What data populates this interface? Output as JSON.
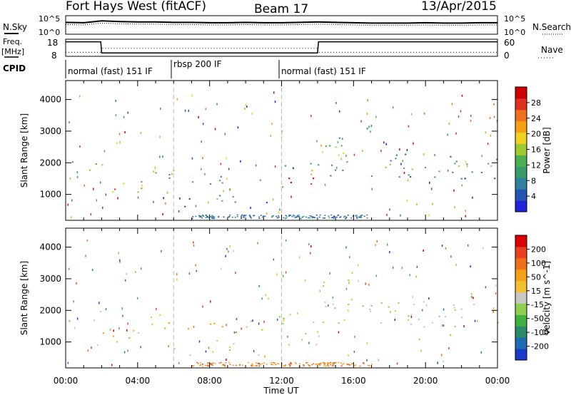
{
  "header": {
    "station": "Fort Hays West (fitACF)",
    "beam": "Beam 17",
    "date": "13/Apr/2015"
  },
  "top_panels": {
    "nsky_label": "N.Sky",
    "nsearch_label": "N.Search",
    "noise_ticks": [
      "10^5",
      "10^0"
    ],
    "noise_ticks_right": [
      "10^5",
      "10^0"
    ],
    "freq_label_1": "Freq.",
    "freq_label_2": "[MHz]",
    "freq_ticks": [
      "18",
      "8"
    ],
    "nave_label": "Nave",
    "nave_ticks": [
      "60",
      "0"
    ],
    "cpid_label": "CPID"
  },
  "cpid_segments": [
    {
      "label": "normal (fast) 151 IF",
      "start": 0,
      "end": 6
    },
    {
      "label": "rbsp 200 IF",
      "start": 6,
      "end": 12
    },
    {
      "label": "normal (fast) 151 IF",
      "start": 12,
      "end": 24
    }
  ],
  "power_colorbar": {
    "title": "Power [dB]",
    "ticks": [
      "28",
      "24",
      "20",
      "16",
      "12",
      "8",
      "4"
    ],
    "colors": [
      "#2222dd",
      "#2255b0",
      "#2f7fa0",
      "#3a9a6a",
      "#4cb050",
      "#a0c830",
      "#f0d020",
      "#f5a010",
      "#f07020",
      "#e03020",
      "#d00000"
    ]
  },
  "velocity_colorbar": {
    "title": "Velocity [m s^-1]",
    "ticks": [
      "200",
      "100",
      "50",
      "15",
      "-15",
      "-50",
      "-100",
      "-200"
    ],
    "colors": [
      "#1a3acc",
      "#1f6ab0",
      "#2a8a6a",
      "#40b040",
      "#90d050",
      "#c8c8c0",
      "#f0c030",
      "#f5a015",
      "#f07018",
      "#e84020",
      "#dd0000"
    ]
  },
  "chart_data": [
    {
      "type": "line",
      "panel": "noise",
      "x": [
        0,
        1,
        2,
        3,
        4,
        5,
        6,
        7,
        8,
        9,
        10,
        11,
        12,
        13,
        14,
        15,
        16,
        17,
        18,
        19,
        20,
        21,
        22,
        23,
        24
      ],
      "series": [
        {
          "name": "N.Sky",
          "values": [
            3.2,
            3.1,
            3.6,
            3.4,
            3.3,
            3.3,
            3.2,
            3.2,
            3.1,
            3.1,
            3.2,
            3.1,
            3.1,
            3.2,
            3.3,
            3.2,
            3.1,
            3.0,
            3.0,
            3.0,
            3.1,
            3.0,
            3.0,
            3.1,
            3.1
          ]
        }
      ],
      "ylim": [
        0,
        5
      ],
      "yscale": "log"
    },
    {
      "type": "line",
      "panel": "frequency",
      "x": [
        0,
        1.95,
        2.0,
        14.0,
        14.05,
        24
      ],
      "series": [
        {
          "name": "Freq.",
          "values": [
            16.5,
            16.5,
            10.0,
            10.0,
            16.5,
            16.5
          ]
        },
        {
          "name": "Nave",
          "values": [
            14,
            14,
            28,
            28,
            14,
            14
          ]
        }
      ],
      "ylim": [
        8,
        18
      ]
    },
    {
      "type": "heatmap",
      "panel": "power",
      "xlabel": "Time UT",
      "ylabel": "Slant Range [km]",
      "xlim": [
        0,
        24
      ],
      "ylim": [
        180,
        4600
      ],
      "xticks": [
        "00:00",
        "04:00",
        "08:00",
        "12:00",
        "16:00",
        "20:00",
        "00:00"
      ],
      "yticks": [
        1000,
        2000,
        3000,
        4000
      ],
      "scatter_regions": [
        {
          "t0": 0.0,
          "t1": 2.0,
          "r0": 1650,
          "r1": 2100,
          "level": 0.55
        },
        {
          "t0": 2.0,
          "t1": 4.5,
          "r0": 1000,
          "r1": 1500,
          "level": 0.8
        },
        {
          "t0": 4.5,
          "t1": 6.0,
          "r0": 1400,
          "r1": 2200,
          "level": 0.4
        },
        {
          "t0": 6.0,
          "t1": 7.0,
          "r0": 600,
          "r1": 1000,
          "level": 0.25
        },
        {
          "t0": 7.0,
          "t1": 11.0,
          "r0": 1300,
          "r1": 1700,
          "level": 0.45
        },
        {
          "t0": 7.0,
          "t1": 9.5,
          "r0": 700,
          "r1": 1100,
          "level": 0.5
        },
        {
          "t0": 10.5,
          "t1": 11.5,
          "r0": 600,
          "r1": 850,
          "level": 0.2
        },
        {
          "t0": 12.0,
          "t1": 14.0,
          "r0": 900,
          "r1": 2000,
          "level": 0.85
        },
        {
          "t0": 14.0,
          "t1": 16.0,
          "r0": 1600,
          "r1": 3000,
          "level": 0.45
        },
        {
          "t0": 16.0,
          "t1": 24.0,
          "r0": 1500,
          "r1": 2300,
          "level": 0.4
        }
      ]
    },
    {
      "type": "heatmap",
      "panel": "velocity",
      "xlabel": "Time UT",
      "ylabel": "Slant Range [km]",
      "xlim": [
        0,
        24
      ],
      "ylim": [
        180,
        4600
      ],
      "xticks": [
        "00:00",
        "04:00",
        "08:00",
        "12:00",
        "16:00",
        "20:00",
        "00:00"
      ],
      "yticks": [
        1000,
        2000,
        3000,
        4000
      ],
      "scatter_regions": [
        {
          "t0": 0.0,
          "t1": 2.0,
          "r0": 1650,
          "r1": 2100,
          "level": 0.5
        },
        {
          "t0": 2.0,
          "t1": 4.5,
          "r0": 1000,
          "r1": 1500,
          "level": 0.62
        },
        {
          "t0": 4.5,
          "t1": 6.0,
          "r0": 1400,
          "r1": 2100,
          "level": 0.62
        },
        {
          "t0": 6.0,
          "t1": 7.0,
          "r0": 600,
          "r1": 1000,
          "level": 0.5
        },
        {
          "t0": 7.0,
          "t1": 11.0,
          "r0": 1300,
          "r1": 1700,
          "level": 0.68
        },
        {
          "t0": 7.0,
          "t1": 9.5,
          "r0": 700,
          "r1": 1100,
          "level": 0.5
        },
        {
          "t0": 10.5,
          "t1": 11.5,
          "r0": 600,
          "r1": 850,
          "level": 0.6
        },
        {
          "t0": 12.0,
          "t1": 14.0,
          "r0": 900,
          "r1": 2000,
          "level": 0.5
        },
        {
          "t0": 14.0,
          "t1": 16.0,
          "r0": 1600,
          "r1": 3000,
          "level": 0.5
        },
        {
          "t0": 16.0,
          "t1": 24.0,
          "r0": 1500,
          "r1": 2300,
          "level": 0.5
        }
      ]
    }
  ]
}
